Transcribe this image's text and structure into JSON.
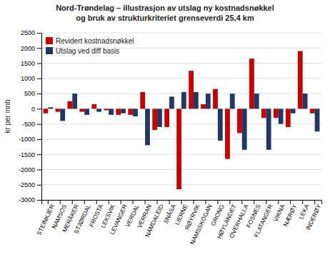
{
  "chart_data": {
    "type": "bar",
    "title": "Nord-Trøndelag – illustrasjon av utslag ny kostnadsnøkkel\nog bruk av strukturkriteriet grenseverdi 25,4 km",
    "ylabel": "kr per innb",
    "categories": [
      "STEINKJER",
      "NAMSOS",
      "MERÅKER",
      "STJØRDAL",
      "FROSTA",
      "LEKSVIK",
      "LEVANGER",
      "VERDAL",
      "VERRAN",
      "NAMDALEID",
      "SNÅSA",
      "LIERNE",
      "RØYRVIK",
      "NAMSSKOGAN",
      "GRONG",
      "HØYLANDET",
      "OVERHALLA",
      "FOSNES",
      "FLATANGER",
      "VIKNA",
      "NÆRØY",
      "LEKA",
      "INDERØY"
    ],
    "series": [
      {
        "name": "Revidert kostnadsnøkkel",
        "color": "#cc0000",
        "values": [
          -150,
          -100,
          250,
          -100,
          150,
          -50,
          -200,
          -200,
          550,
          -700,
          -600,
          -2650,
          1250,
          150,
          650,
          -1650,
          -800,
          1650,
          -300,
          -300,
          -600,
          1900,
          -150
        ]
      },
      {
        "name": "Utslag ved diff basis",
        "color": "#1f3864",
        "values": [
          50,
          -400,
          500,
          -200,
          -100,
          -200,
          -150,
          -250,
          -1200,
          -600,
          400,
          550,
          550,
          500,
          -1050,
          500,
          -1350,
          500,
          -1350,
          -500,
          -150,
          500,
          -750
        ]
      }
    ],
    "ylim": [
      -3000,
      2500
    ],
    "yticks": [
      -3000,
      -2500,
      -2000,
      -1500,
      -1000,
      -500,
      0,
      500,
      1000,
      1500,
      2000,
      2500
    ],
    "grid": true,
    "legend": "upper left"
  }
}
